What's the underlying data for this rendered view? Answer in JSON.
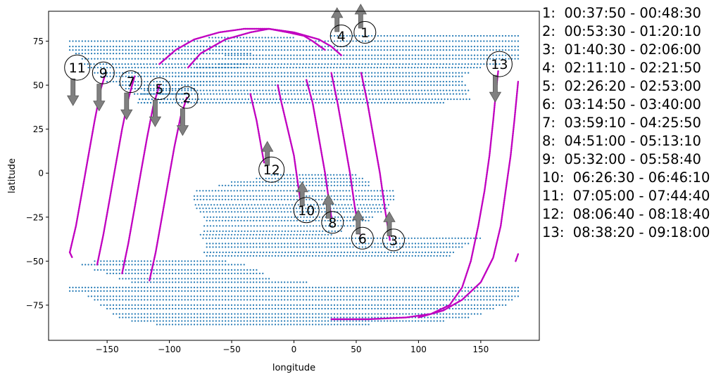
{
  "chart_data": {
    "type": "scatter",
    "xlabel": "longitude",
    "ylabel": "latitude",
    "xlim": [
      -197,
      197
    ],
    "ylim": [
      -95,
      92
    ],
    "x_ticks": [
      -150,
      -100,
      -50,
      0,
      50,
      100,
      150
    ],
    "y_ticks": [
      -75,
      -50,
      -25,
      0,
      25,
      50,
      75
    ],
    "grid": false,
    "colors": {
      "land": "#1f77b4",
      "track": "#c000c0",
      "arrow": "#808080"
    },
    "land_regions": [
      {
        "rows": [
          [
            75,
            -180,
            -65
          ],
          [
            72,
            -180,
            -50
          ],
          [
            70,
            -180,
            -40
          ],
          [
            68,
            -175,
            -35
          ],
          [
            65,
            -170,
            -30
          ],
          [
            62,
            -168,
            -38
          ],
          [
            60,
            -165,
            -45
          ],
          [
            57,
            -160,
            -55
          ],
          [
            55,
            -155,
            -60
          ],
          [
            52,
            -150,
            -65
          ],
          [
            50,
            -140,
            -75
          ],
          [
            48,
            -135,
            -80
          ],
          [
            45,
            -128,
            -85
          ],
          [
            42,
            -124,
            -95
          ],
          [
            40,
            -120,
            -100
          ]
        ]
      },
      {
        "rows": [
          [
            77,
            -68,
            0
          ],
          [
            78,
            30,
            180
          ],
          [
            75,
            -65,
            180
          ],
          [
            72,
            -75,
            180
          ],
          [
            70,
            -60,
            180
          ],
          [
            67,
            -55,
            180
          ],
          [
            65,
            -45,
            180
          ],
          [
            62,
            -60,
            165
          ],
          [
            60,
            -78,
            150
          ],
          [
            57,
            -90,
            140
          ],
          [
            55,
            -95,
            135
          ],
          [
            52,
            -100,
            135
          ],
          [
            50,
            -110,
            138
          ],
          [
            47,
            -120,
            141
          ],
          [
            45,
            -122,
            140
          ],
          [
            42,
            -124,
            142
          ],
          [
            40,
            -125,
            120
          ]
        ]
      },
      {
        "rows": [
          [
            -1,
            -18,
            50
          ],
          [
            -3,
            -30,
            55
          ],
          [
            -5,
            -50,
            60
          ],
          [
            -7,
            -60,
            60
          ],
          [
            -10,
            -78,
            80
          ],
          [
            -13,
            -80,
            80
          ],
          [
            -15,
            -80,
            80
          ],
          [
            -18,
            -79,
            78
          ],
          [
            -20,
            -78,
            75
          ],
          [
            -22,
            -75,
            70
          ],
          [
            -25,
            -72,
            65
          ],
          [
            -27,
            -70,
            60
          ],
          [
            -30,
            -72,
            50
          ],
          [
            -33,
            -72,
            40
          ],
          [
            -35,
            -75,
            30
          ],
          [
            -37,
            -73,
            150
          ],
          [
            -40,
            -70,
            140
          ],
          [
            -42,
            -70,
            135
          ],
          [
            -45,
            -72,
            130
          ],
          [
            -47,
            -70,
            125
          ],
          [
            -50,
            -160,
            -55
          ],
          [
            -52,
            -170,
            -40
          ],
          [
            -55,
            -160,
            -30
          ],
          [
            -57,
            -150,
            -25
          ],
          [
            -60,
            -140,
            -20
          ],
          [
            -62,
            -130,
            10
          ],
          [
            -65,
            -180,
            180
          ],
          [
            -67,
            -180,
            180
          ],
          [
            -70,
            -165,
            180
          ],
          [
            -72,
            -160,
            175
          ],
          [
            -75,
            -155,
            170
          ],
          [
            -77,
            -150,
            160
          ],
          [
            -80,
            -145,
            150
          ],
          [
            -82,
            -140,
            140
          ],
          [
            -84,
            -130,
            120
          ],
          [
            -86,
            -110,
            60
          ]
        ]
      }
    ],
    "tracks": [
      {
        "points": [
          [
            -108,
            62
          ],
          [
            -95,
            70
          ],
          [
            -80,
            76
          ],
          [
            -60,
            80
          ],
          [
            -40,
            82
          ],
          [
            -20,
            82
          ],
          [
            0,
            80
          ],
          [
            10,
            78
          ],
          [
            20,
            76
          ],
          [
            30,
            72
          ],
          [
            38,
            67
          ]
        ]
      },
      {
        "points": [
          [
            -85,
            60
          ],
          [
            -75,
            68
          ],
          [
            -55,
            76
          ],
          [
            -35,
            80
          ],
          [
            -20,
            82
          ],
          [
            -5,
            80
          ],
          [
            8,
            78
          ],
          [
            15,
            75
          ],
          [
            25,
            70
          ]
        ]
      },
      {
        "points": [
          [
            -180,
            -45
          ],
          [
            -175,
            -30
          ],
          [
            -170,
            -10
          ],
          [
            -165,
            10
          ],
          [
            -160,
            30
          ],
          [
            -155,
            48
          ],
          [
            -152,
            55
          ]
        ]
      },
      {
        "points": [
          [
            -158,
            -52
          ],
          [
            -153,
            -35
          ],
          [
            -148,
            -15
          ],
          [
            -143,
            5
          ],
          [
            -138,
            25
          ],
          [
            -133,
            42
          ],
          [
            -128,
            55
          ]
        ]
      },
      {
        "points": [
          [
            -138,
            -57
          ],
          [
            -133,
            -40
          ],
          [
            -128,
            -20
          ],
          [
            -123,
            0
          ],
          [
            -118,
            20
          ],
          [
            -113,
            38
          ],
          [
            -108,
            50
          ]
        ]
      },
      {
        "points": [
          [
            -116,
            -61
          ],
          [
            -111,
            -45
          ],
          [
            -106,
            -25
          ],
          [
            -101,
            -5
          ],
          [
            -96,
            15
          ],
          [
            -91,
            32
          ],
          [
            -86,
            43
          ]
        ]
      },
      {
        "points": [
          [
            -35,
            45
          ],
          [
            -30,
            30
          ],
          [
            -27,
            18
          ],
          [
            -24,
            6
          ]
        ]
      },
      {
        "points": [
          [
            -13,
            50
          ],
          [
            -10,
            40
          ],
          [
            -5,
            25
          ],
          [
            0,
            10
          ],
          [
            3,
            -5
          ],
          [
            5,
            -15
          ]
        ]
      },
      {
        "points": [
          [
            10,
            53
          ],
          [
            15,
            40
          ],
          [
            20,
            20
          ],
          [
            25,
            0
          ],
          [
            28,
            -15
          ],
          [
            30,
            -25
          ]
        ]
      },
      {
        "points": [
          [
            30,
            57
          ],
          [
            35,
            40
          ],
          [
            40,
            20
          ],
          [
            45,
            0
          ],
          [
            49,
            -20
          ],
          [
            53,
            -35
          ]
        ]
      },
      {
        "points": [
          [
            54,
            57
          ],
          [
            59,
            40
          ],
          [
            64,
            20
          ],
          [
            69,
            0
          ],
          [
            73,
            -20
          ],
          [
            77,
            -38
          ]
        ]
      },
      {
        "points": [
          [
            30,
            -83
          ],
          [
            60,
            -83
          ],
          [
            90,
            -82
          ],
          [
            110,
            -80
          ],
          [
            125,
            -75
          ],
          [
            135,
            -65
          ],
          [
            142,
            -50
          ],
          [
            148,
            -30
          ],
          [
            153,
            -10
          ],
          [
            157,
            10
          ],
          [
            160,
            30
          ],
          [
            162,
            45
          ],
          [
            164,
            58
          ]
        ]
      },
      {
        "points": [
          [
            100,
            -82
          ],
          [
            120,
            -78
          ],
          [
            135,
            -72
          ],
          [
            150,
            -62
          ],
          [
            160,
            -48
          ],
          [
            166,
            -30
          ],
          [
            170,
            -10
          ],
          [
            174,
            10
          ],
          [
            177,
            30
          ],
          [
            180,
            52
          ]
        ]
      },
      {
        "points": [
          [
            -180,
            -45
          ],
          [
            -178,
            -48
          ]
        ]
      },
      {
        "points": [
          [
            178,
            -50
          ],
          [
            180,
            -46
          ]
        ]
      }
    ],
    "annotations": [
      {
        "label": "1",
        "x": 57,
        "y": 80,
        "arrow": "up"
      },
      {
        "label": "2",
        "x": -86,
        "y": 43,
        "arrow": "down"
      },
      {
        "label": "3",
        "x": 80,
        "y": -38,
        "arrow": "up"
      },
      {
        "label": "4",
        "x": 38,
        "y": 78,
        "arrow": "up"
      },
      {
        "label": "5",
        "x": -108,
        "y": 48,
        "arrow": "down"
      },
      {
        "label": "6",
        "x": 55,
        "y": -37,
        "arrow": "up"
      },
      {
        "label": "7",
        "x": -131,
        "y": 52,
        "arrow": "down"
      },
      {
        "label": "8",
        "x": 31,
        "y": -28,
        "arrow": "up"
      },
      {
        "label": "9",
        "x": -153,
        "y": 57,
        "arrow": "down"
      },
      {
        "label": "10",
        "x": 10,
        "y": -21,
        "arrow": "up"
      },
      {
        "label": "11",
        "x": -174,
        "y": 60,
        "arrow": "down"
      },
      {
        "label": "12",
        "x": -18,
        "y": 2,
        "arrow": "up"
      },
      {
        "label": "13",
        "x": 165,
        "y": 62,
        "arrow": "down"
      }
    ],
    "legend": [
      "1:  00:37:50 - 00:48:30",
      "2:  00:53:30 - 01:20:10",
      "3:  01:40:30 - 02:06:00",
      "4:  02:11:10 - 02:21:50",
      "5:  02:26:20 - 02:53:00",
      "6:  03:14:50 - 03:40:00",
      "7:  03:59:10 - 04:25:50",
      "8:  04:51:00 - 05:13:10",
      "9:  05:32:00 - 05:58:40",
      "10:  06:26:30 - 06:46:10",
      "11:  07:05:00 - 07:44:40",
      "12:  08:06:40 - 08:18:40",
      "13:  08:38:20 - 09:18:00"
    ]
  }
}
